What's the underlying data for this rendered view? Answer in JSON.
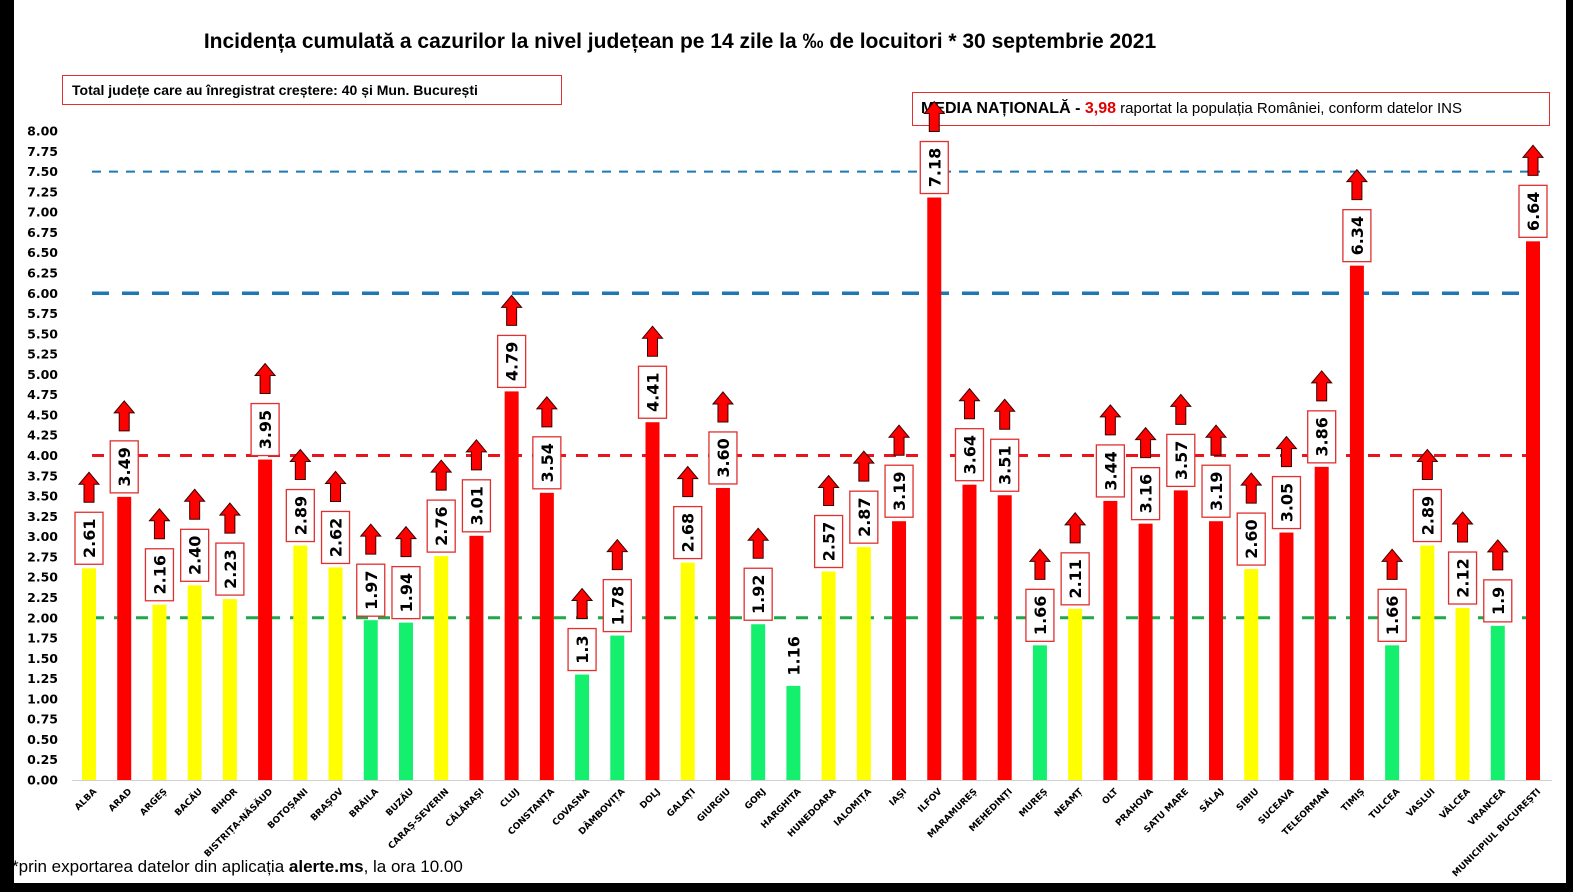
{
  "header": {
    "title": "Incidența cumulată a cazurilor la nivel județean pe 14 zile la ‰ de locuitori * 30 septembrie 2021",
    "total_box": "Total județe care au înregistrat creștere:  40 și Mun. București",
    "media_label": "MEDIA NAȚIONALĂ",
    "media_dash": " - ",
    "media_value": "3,98",
    "media_suffix": " raportat la populația României, conform datelor INS"
  },
  "footnote": {
    "prefix": "*prin exportarea datelor din aplicația ",
    "bold": "alerte.ms",
    "suffix": ", la ora 10.00"
  },
  "colors": {
    "red": "#ff0000",
    "yellow": "#ffff00",
    "green": "#14f06e",
    "line_blue": "#1f77b4",
    "line_red": "#e8141e",
    "line_green": "#1fa84a",
    "label_border": "#e03030"
  },
  "chart_data": {
    "type": "bar",
    "title": "Incidența cumulată a cazurilor la nivel județean pe 14 zile la ‰ de locuitori * 30 septembrie 2021",
    "xlabel": "",
    "ylabel": "",
    "ylim": [
      0,
      8
    ],
    "ytick_step": 0.25,
    "yticks": [
      "0.00",
      "0.25",
      "0.50",
      "0.75",
      "1.00",
      "1.25",
      "1.50",
      "1.75",
      "2.00",
      "2.25",
      "2.50",
      "2.75",
      "3.00",
      "3.25",
      "3.50",
      "3.75",
      "4.00",
      "4.25",
      "4.50",
      "4.75",
      "5.00",
      "5.25",
      "5.50",
      "5.75",
      "6.00",
      "6.25",
      "6.50",
      "6.75",
      "7.00",
      "7.25",
      "7.50",
      "7.75",
      "8.00"
    ],
    "grid": false,
    "reference_lines": [
      {
        "value": 7.5,
        "color": "blue",
        "style": "dashed-thin"
      },
      {
        "value": 6.0,
        "color": "blue",
        "style": "dashed-thick"
      },
      {
        "value": 4.0,
        "color": "red",
        "style": "dashed"
      },
      {
        "value": 2.0,
        "color": "green",
        "style": "dashed"
      }
    ],
    "categories": [
      "ALBA",
      "ARAD",
      "ARGEȘ",
      "BACĂU",
      "BIHOR",
      "BISTRIȚA-NĂSĂUD",
      "BOTOȘANI",
      "BRAȘOV",
      "BRĂILA",
      "BUZĂU",
      "CARAȘ-SEVERIN",
      "CĂLĂRAȘI",
      "CLUJ",
      "CONSTANȚA",
      "COVASNA",
      "DÂMBOVIȚA",
      "DOLJ",
      "GALAȚI",
      "GIURGIU",
      "GORJ",
      "HARGHITA",
      "HUNEDOARA",
      "IALOMIȚA",
      "IAȘI",
      "ILFOV",
      "MARAMUREȘ",
      "MEHEDINȚI",
      "MUREȘ",
      "NEAMȚ",
      "OLT",
      "PRAHOVA",
      "SATU MARE",
      "SĂLAJ",
      "SIBIU",
      "SUCEAVA",
      "TELEORMAN",
      "TIMIȘ",
      "TULCEA",
      "VASLUI",
      "VÂLCEA",
      "VRANCEA",
      "MUNICIPIUL BUCUREȘTI"
    ],
    "values": [
      2.61,
      3.49,
      2.16,
      2.4,
      2.23,
      3.95,
      2.89,
      2.62,
      1.97,
      1.94,
      2.76,
      3.01,
      4.79,
      3.54,
      1.3,
      1.78,
      4.41,
      2.68,
      3.6,
      1.92,
      1.16,
      2.57,
      2.87,
      3.19,
      7.18,
      3.64,
      3.51,
      1.66,
      2.11,
      3.44,
      3.16,
      3.57,
      3.19,
      2.6,
      3.05,
      3.86,
      6.34,
      1.66,
      2.89,
      2.12,
      1.9,
      6.64
    ],
    "value_labels": [
      "2.61",
      "3.49",
      "2.16",
      "2.40",
      "2.23",
      "3.95",
      "2.89",
      "2.62",
      "1.97",
      "1.94",
      "2.76",
      "3.01",
      "4.79",
      "3.54",
      "1.3",
      "1.78",
      "4.41",
      "2.68",
      "3.60",
      "1.92",
      "1.16",
      "2.57",
      "2.87",
      "3.19",
      "7.18",
      "3.64",
      "3.51",
      "1.66",
      "2.11",
      "3.44",
      "3.16",
      "3.57",
      "3.19",
      "2.60",
      "3.05",
      "3.86",
      "6.34",
      "1.66",
      "2.89",
      "2.12",
      "1.9",
      "6.64"
    ],
    "bar_colors": [
      "yellow",
      "red",
      "yellow",
      "yellow",
      "yellow",
      "red",
      "yellow",
      "yellow",
      "green",
      "green",
      "yellow",
      "red",
      "red",
      "red",
      "green",
      "green",
      "red",
      "yellow",
      "red",
      "green",
      "green",
      "yellow",
      "yellow",
      "red",
      "red",
      "red",
      "red",
      "green",
      "yellow",
      "red",
      "red",
      "red",
      "red",
      "yellow",
      "red",
      "red",
      "red",
      "green",
      "yellow",
      "yellow",
      "green",
      "red"
    ],
    "increase_arrow": [
      true,
      true,
      true,
      true,
      true,
      true,
      true,
      true,
      true,
      true,
      true,
      true,
      true,
      true,
      true,
      true,
      true,
      true,
      true,
      true,
      false,
      true,
      true,
      true,
      true,
      true,
      true,
      true,
      true,
      true,
      true,
      true,
      true,
      true,
      true,
      true,
      true,
      true,
      true,
      true,
      true,
      true
    ],
    "label_boxed": [
      true,
      true,
      true,
      true,
      true,
      true,
      true,
      true,
      true,
      true,
      true,
      true,
      true,
      true,
      true,
      true,
      true,
      true,
      true,
      true,
      false,
      true,
      true,
      true,
      true,
      true,
      true,
      true,
      true,
      true,
      true,
      true,
      true,
      true,
      true,
      true,
      true,
      true,
      true,
      true,
      true,
      true
    ]
  }
}
